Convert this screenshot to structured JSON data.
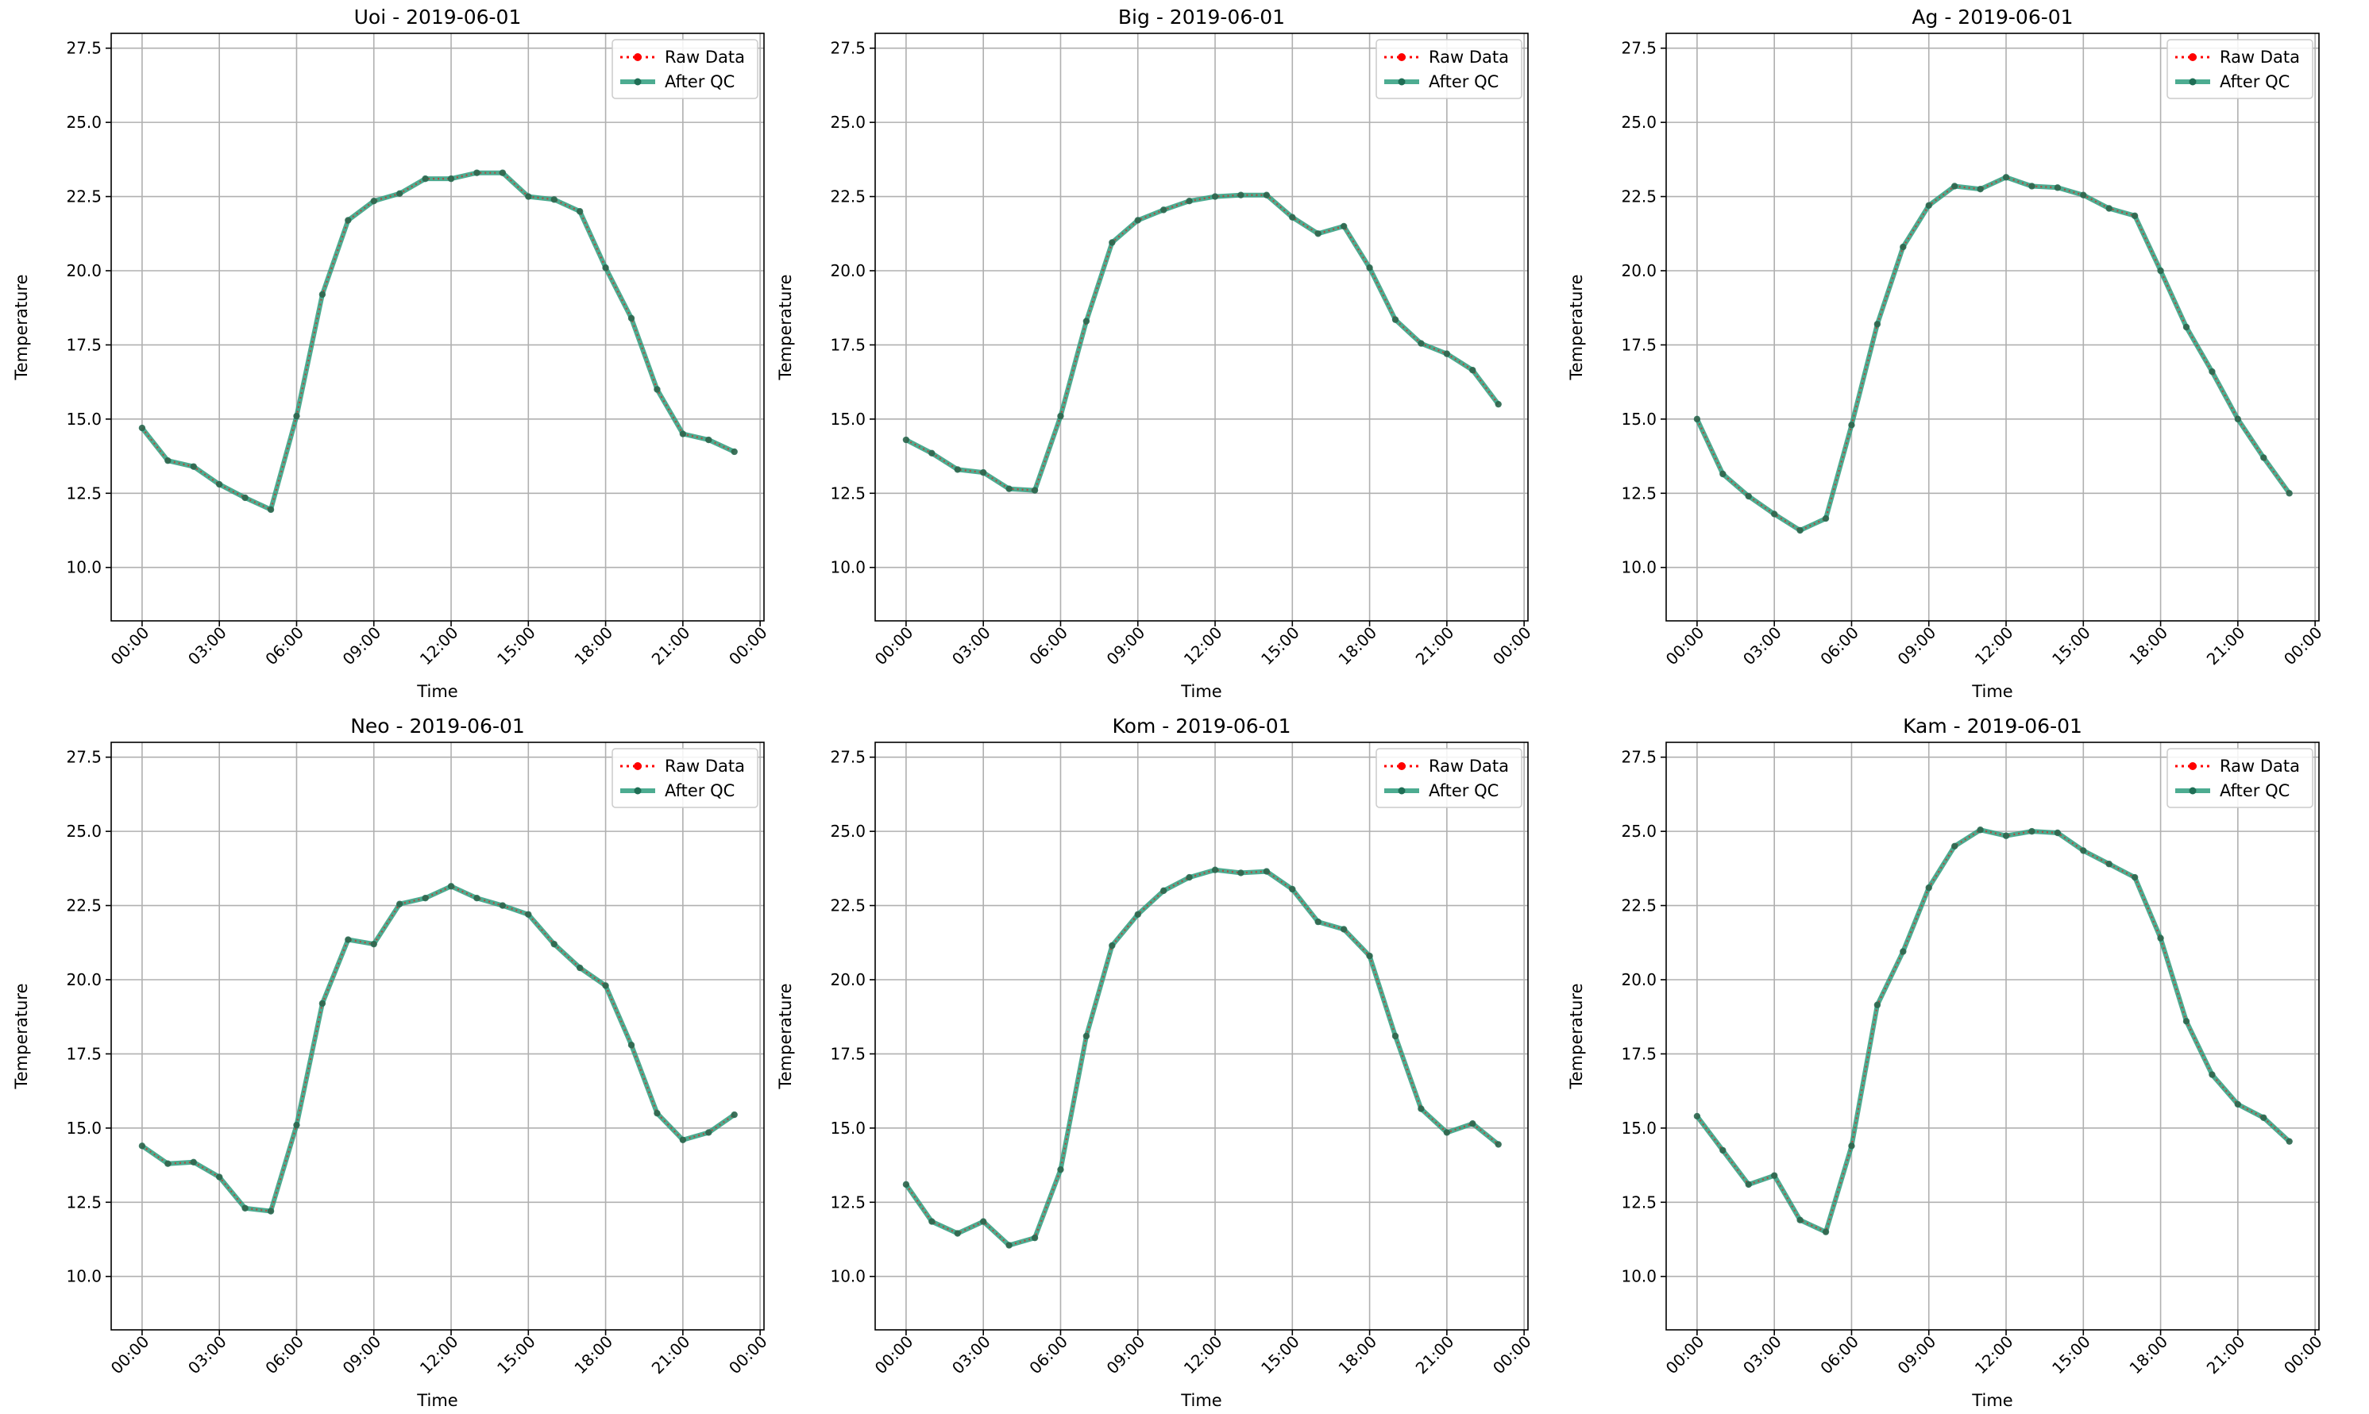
{
  "colors": {
    "raw": "#ff0000",
    "qc": "#2e9e7e",
    "qc_marker": "#1f6e55",
    "grid": "#b0b0b0",
    "axes": "#000000"
  },
  "chart_data": [
    {
      "type": "line",
      "title": "Uoi - 2019-06-01",
      "xlabel": "Time",
      "ylabel": "Temperature",
      "ylim": [
        8.2,
        28.0
      ],
      "yticks": [
        10.0,
        12.5,
        15.0,
        17.5,
        20.0,
        22.5,
        25.0,
        27.5
      ],
      "ytick_labels": [
        "10.0",
        "12.5",
        "15.0",
        "17.5",
        "20.0",
        "22.5",
        "25.0",
        "27.5"
      ],
      "xlim": [
        "2019-05-31 22:48",
        "2019-06-02 00:09"
      ],
      "xticks": [
        "2019-06-01 00:00",
        "2019-06-01 03:00",
        "2019-06-01 06:00",
        "2019-06-01 09:00",
        "2019-06-01 12:00",
        "2019-06-01 15:00",
        "2019-06-01 18:00",
        "2019-06-01 21:00",
        "2019-06-02 00:00"
      ],
      "xtick_labels": [
        "00:00",
        "03:00",
        "06:00",
        "09:00",
        "12:00",
        "15:00",
        "18:00",
        "21:00",
        "00:00"
      ],
      "grid": true,
      "legend": "top-right",
      "x": [
        "00:00",
        "01:00",
        "02:00",
        "03:00",
        "04:00",
        "05:00",
        "06:00",
        "07:00",
        "08:00",
        "09:00",
        "10:00",
        "11:00",
        "12:00",
        "13:00",
        "14:00",
        "15:00",
        "16:00",
        "17:00",
        "18:00",
        "19:00",
        "20:00",
        "21:00",
        "22:00",
        "23:00"
      ],
      "series": [
        {
          "name": "Raw Data",
          "values": [
            14.7,
            13.6,
            13.4,
            12.8,
            12.35,
            11.95,
            15.1,
            19.2,
            21.7,
            22.35,
            22.6,
            23.1,
            23.1,
            23.3,
            23.3,
            22.5,
            22.4,
            22.0,
            20.1,
            18.4,
            16.0,
            14.5,
            14.3,
            13.9
          ]
        },
        {
          "name": "After QC",
          "values": [
            14.7,
            13.6,
            13.4,
            12.8,
            12.35,
            11.95,
            15.1,
            19.2,
            21.7,
            22.35,
            22.6,
            23.1,
            23.1,
            23.3,
            23.3,
            22.5,
            22.4,
            22.0,
            20.1,
            18.4,
            16.0,
            14.5,
            14.3,
            13.9
          ]
        }
      ]
    },
    {
      "type": "line",
      "title": "Big - 2019-06-01",
      "xlabel": "Time",
      "ylabel": "Temperature",
      "ylim": [
        8.2,
        28.0
      ],
      "yticks": [
        10.0,
        12.5,
        15.0,
        17.5,
        20.0,
        22.5,
        25.0,
        27.5
      ],
      "ytick_labels": [
        "10.0",
        "12.5",
        "15.0",
        "17.5",
        "20.0",
        "22.5",
        "25.0",
        "27.5"
      ],
      "xlim": [
        "2019-05-31 22:48",
        "2019-06-02 00:09"
      ],
      "xticks": [
        "2019-06-01 00:00",
        "2019-06-01 03:00",
        "2019-06-01 06:00",
        "2019-06-01 09:00",
        "2019-06-01 12:00",
        "2019-06-01 15:00",
        "2019-06-01 18:00",
        "2019-06-01 21:00",
        "2019-06-02 00:00"
      ],
      "xtick_labels": [
        "00:00",
        "03:00",
        "06:00",
        "09:00",
        "12:00",
        "15:00",
        "18:00",
        "21:00",
        "00:00"
      ],
      "grid": true,
      "legend": "top-right",
      "x": [
        "00:00",
        "01:00",
        "02:00",
        "03:00",
        "04:00",
        "05:00",
        "06:00",
        "07:00",
        "08:00",
        "09:00",
        "10:00",
        "11:00",
        "12:00",
        "13:00",
        "14:00",
        "15:00",
        "16:00",
        "17:00",
        "18:00",
        "19:00",
        "20:00",
        "21:00",
        "22:00",
        "23:00"
      ],
      "series": [
        {
          "name": "Raw Data",
          "values": [
            14.3,
            13.85,
            13.3,
            13.2,
            12.65,
            12.6,
            15.1,
            18.3,
            20.95,
            21.7,
            22.05,
            22.35,
            22.5,
            22.55,
            22.55,
            21.8,
            21.25,
            21.5,
            20.1,
            18.35,
            17.55,
            17.2,
            16.65,
            15.5
          ]
        },
        {
          "name": "After QC",
          "values": [
            14.3,
            13.85,
            13.3,
            13.2,
            12.65,
            12.6,
            15.1,
            18.3,
            20.95,
            21.7,
            22.05,
            22.35,
            22.5,
            22.55,
            22.55,
            21.8,
            21.25,
            21.5,
            20.1,
            18.35,
            17.55,
            17.2,
            16.65,
            15.5
          ]
        }
      ]
    },
    {
      "type": "line",
      "title": "Ag - 2019-06-01",
      "xlabel": "Time",
      "ylabel": "Temperature",
      "ylim": [
        8.2,
        28.0
      ],
      "yticks": [
        10.0,
        12.5,
        15.0,
        17.5,
        20.0,
        22.5,
        25.0,
        27.5
      ],
      "ytick_labels": [
        "10.0",
        "12.5",
        "15.0",
        "17.5",
        "20.0",
        "22.5",
        "25.0",
        "27.5"
      ],
      "xlim": [
        "2019-05-31 22:48",
        "2019-06-02 00:09"
      ],
      "xticks": [
        "2019-06-01 00:00",
        "2019-06-01 03:00",
        "2019-06-01 06:00",
        "2019-06-01 09:00",
        "2019-06-01 12:00",
        "2019-06-01 15:00",
        "2019-06-01 18:00",
        "2019-06-01 21:00",
        "2019-06-02 00:00"
      ],
      "xtick_labels": [
        "00:00",
        "03:00",
        "06:00",
        "09:00",
        "12:00",
        "15:00",
        "18:00",
        "21:00",
        "00:00"
      ],
      "grid": true,
      "legend": "top-right",
      "x": [
        "00:00",
        "01:00",
        "02:00",
        "03:00",
        "04:00",
        "05:00",
        "06:00",
        "07:00",
        "08:00",
        "09:00",
        "10:00",
        "11:00",
        "12:00",
        "13:00",
        "14:00",
        "15:00",
        "16:00",
        "17:00",
        "18:00",
        "19:00",
        "20:00",
        "21:00",
        "22:00",
        "23:00"
      ],
      "series": [
        {
          "name": "Raw Data",
          "values": [
            15.0,
            13.15,
            12.4,
            11.8,
            11.25,
            11.65,
            14.8,
            18.2,
            20.8,
            22.2,
            22.85,
            22.75,
            23.15,
            22.85,
            22.8,
            22.55,
            22.1,
            21.85,
            20.0,
            18.1,
            16.6,
            15.0,
            13.7,
            12.5
          ]
        },
        {
          "name": "After QC",
          "values": [
            15.0,
            13.15,
            12.4,
            11.8,
            11.25,
            11.65,
            14.8,
            18.2,
            20.8,
            22.2,
            22.85,
            22.75,
            23.15,
            22.85,
            22.8,
            22.55,
            22.1,
            21.85,
            20.0,
            18.1,
            16.6,
            15.0,
            13.7,
            12.5
          ]
        }
      ]
    },
    {
      "type": "line",
      "title": "Neo - 2019-06-01",
      "xlabel": "Time",
      "ylabel": "Temperature",
      "ylim": [
        8.2,
        28.0
      ],
      "yticks": [
        10.0,
        12.5,
        15.0,
        17.5,
        20.0,
        22.5,
        25.0,
        27.5
      ],
      "ytick_labels": [
        "10.0",
        "12.5",
        "15.0",
        "17.5",
        "20.0",
        "22.5",
        "25.0",
        "27.5"
      ],
      "xlim": [
        "2019-05-31 22:48",
        "2019-06-02 00:09"
      ],
      "xticks": [
        "2019-06-01 00:00",
        "2019-06-01 03:00",
        "2019-06-01 06:00",
        "2019-06-01 09:00",
        "2019-06-01 12:00",
        "2019-06-01 15:00",
        "2019-06-01 18:00",
        "2019-06-01 21:00",
        "2019-06-02 00:00"
      ],
      "xtick_labels": [
        "00:00",
        "03:00",
        "06:00",
        "09:00",
        "12:00",
        "15:00",
        "18:00",
        "21:00",
        "00:00"
      ],
      "grid": true,
      "legend": "top-right",
      "x": [
        "00:00",
        "01:00",
        "02:00",
        "03:00",
        "04:00",
        "05:00",
        "06:00",
        "07:00",
        "08:00",
        "09:00",
        "10:00",
        "11:00",
        "12:00",
        "13:00",
        "14:00",
        "15:00",
        "16:00",
        "17:00",
        "18:00",
        "19:00",
        "20:00",
        "21:00",
        "22:00",
        "23:00"
      ],
      "series": [
        {
          "name": "Raw Data",
          "values": [
            14.4,
            13.8,
            13.85,
            13.35,
            12.3,
            12.2,
            15.1,
            19.2,
            21.35,
            21.2,
            22.55,
            22.75,
            23.15,
            22.75,
            22.5,
            22.2,
            21.2,
            20.4,
            19.8,
            17.8,
            15.5,
            14.6,
            14.85,
            15.45
          ]
        },
        {
          "name": "After QC",
          "values": [
            14.4,
            13.8,
            13.85,
            13.35,
            12.3,
            12.2,
            15.1,
            19.2,
            21.35,
            21.2,
            22.55,
            22.75,
            23.15,
            22.75,
            22.5,
            22.2,
            21.2,
            20.4,
            19.8,
            17.8,
            15.5,
            14.6,
            14.85,
            15.45
          ]
        }
      ]
    },
    {
      "type": "line",
      "title": "Kom - 2019-06-01",
      "xlabel": "Time",
      "ylabel": "Temperature",
      "ylim": [
        8.2,
        28.0
      ],
      "yticks": [
        10.0,
        12.5,
        15.0,
        17.5,
        20.0,
        22.5,
        25.0,
        27.5
      ],
      "ytick_labels": [
        "10.0",
        "12.5",
        "15.0",
        "17.5",
        "20.0",
        "22.5",
        "25.0",
        "27.5"
      ],
      "xlim": [
        "2019-05-31 22:48",
        "2019-06-02 00:09"
      ],
      "xticks": [
        "2019-06-01 00:00",
        "2019-06-01 03:00",
        "2019-06-01 06:00",
        "2019-06-01 09:00",
        "2019-06-01 12:00",
        "2019-06-01 15:00",
        "2019-06-01 18:00",
        "2019-06-01 21:00",
        "2019-06-02 00:00"
      ],
      "xtick_labels": [
        "00:00",
        "03:00",
        "06:00",
        "09:00",
        "12:00",
        "15:00",
        "18:00",
        "21:00",
        "00:00"
      ],
      "grid": true,
      "legend": "top-right",
      "x": [
        "00:00",
        "01:00",
        "02:00",
        "03:00",
        "04:00",
        "05:00",
        "06:00",
        "07:00",
        "08:00",
        "09:00",
        "10:00",
        "11:00",
        "12:00",
        "13:00",
        "14:00",
        "15:00",
        "16:00",
        "17:00",
        "18:00",
        "19:00",
        "20:00",
        "21:00",
        "22:00",
        "23:00"
      ],
      "series": [
        {
          "name": "Raw Data",
          "values": [
            13.1,
            11.85,
            11.45,
            11.85,
            11.05,
            11.3,
            13.6,
            18.1,
            21.15,
            22.2,
            23.0,
            23.45,
            23.7,
            23.6,
            23.65,
            23.05,
            21.95,
            21.7,
            20.8,
            18.1,
            15.65,
            14.85,
            15.15,
            14.45
          ]
        },
        {
          "name": "After QC",
          "values": [
            13.1,
            11.85,
            11.45,
            11.85,
            11.05,
            11.3,
            13.6,
            18.1,
            21.15,
            22.2,
            23.0,
            23.45,
            23.7,
            23.6,
            23.65,
            23.05,
            21.95,
            21.7,
            20.8,
            18.1,
            15.65,
            14.85,
            15.15,
            14.45
          ]
        }
      ]
    },
    {
      "type": "line",
      "title": "Kam - 2019-06-01",
      "xlabel": "Time",
      "ylabel": "Temperature",
      "ylim": [
        8.2,
        28.0
      ],
      "yticks": [
        10.0,
        12.5,
        15.0,
        17.5,
        20.0,
        22.5,
        25.0,
        27.5
      ],
      "ytick_labels": [
        "10.0",
        "12.5",
        "15.0",
        "17.5",
        "20.0",
        "22.5",
        "25.0",
        "27.5"
      ],
      "xlim": [
        "2019-05-31 22:48",
        "2019-06-02 00:09"
      ],
      "xticks": [
        "2019-06-01 00:00",
        "2019-06-01 03:00",
        "2019-06-01 06:00",
        "2019-06-01 09:00",
        "2019-06-01 12:00",
        "2019-06-01 15:00",
        "2019-06-01 18:00",
        "2019-06-01 21:00",
        "2019-06-02 00:00"
      ],
      "xtick_labels": [
        "00:00",
        "03:00",
        "06:00",
        "09:00",
        "12:00",
        "15:00",
        "18:00",
        "21:00",
        "00:00"
      ],
      "grid": true,
      "legend": "top-right",
      "x": [
        "00:00",
        "01:00",
        "02:00",
        "03:00",
        "04:00",
        "05:00",
        "06:00",
        "07:00",
        "08:00",
        "09:00",
        "10:00",
        "11:00",
        "12:00",
        "13:00",
        "14:00",
        "15:00",
        "16:00",
        "17:00",
        "18:00",
        "19:00",
        "20:00",
        "21:00",
        "22:00",
        "23:00"
      ],
      "series": [
        {
          "name": "Raw Data",
          "values": [
            15.4,
            14.25,
            13.1,
            13.4,
            11.9,
            11.5,
            14.4,
            19.15,
            20.95,
            23.1,
            24.5,
            25.05,
            24.85,
            25.0,
            24.95,
            24.35,
            23.9,
            23.45,
            21.4,
            18.6,
            16.8,
            15.8,
            15.35,
            14.55
          ]
        },
        {
          "name": "After QC",
          "values": [
            15.4,
            14.25,
            13.1,
            13.4,
            11.9,
            11.5,
            14.4,
            19.15,
            20.95,
            23.1,
            24.5,
            25.05,
            24.85,
            25.0,
            24.95,
            24.35,
            23.9,
            23.45,
            21.4,
            18.6,
            16.8,
            15.8,
            15.35,
            14.55
          ]
        }
      ]
    }
  ]
}
